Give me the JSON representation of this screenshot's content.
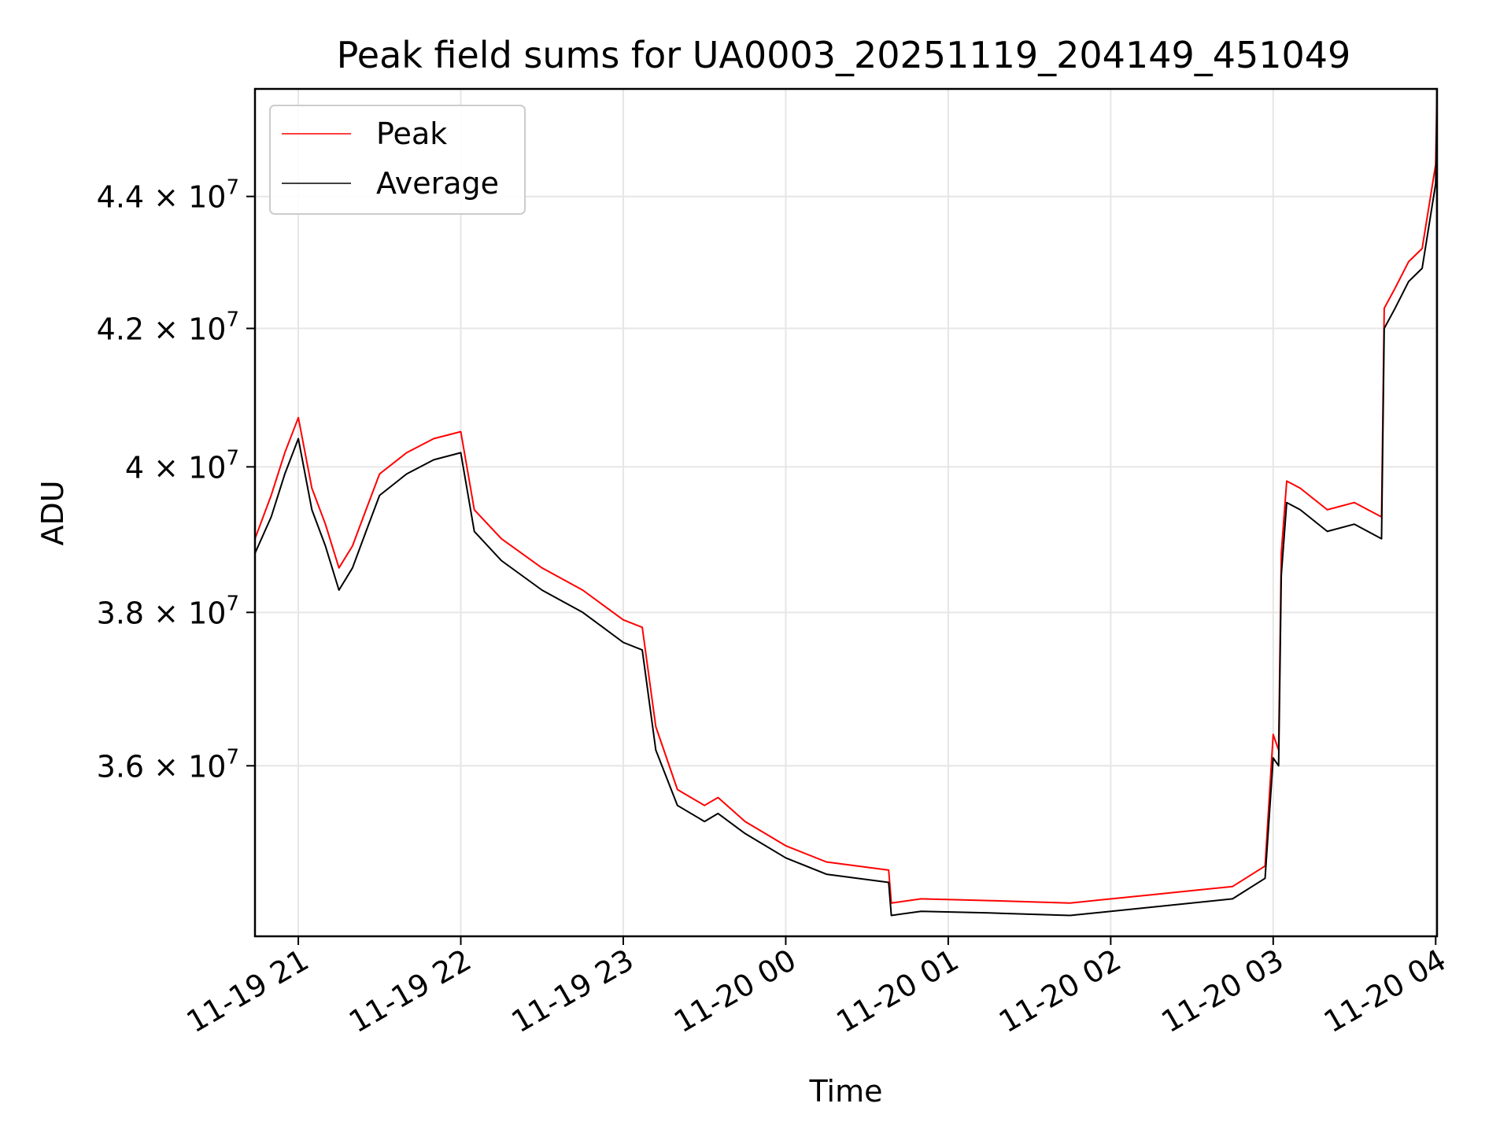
{
  "chart_data": {
    "type": "line",
    "title": "Peak field sums for UA0003_20251119_204149_451049",
    "xlabel": "Time",
    "ylabel": "ADU",
    "x_axis": {
      "type": "time",
      "range": [
        "2025-11-19T20:44:00",
        "2025-11-20T04:00:30"
      ],
      "ticks": [
        {
          "value": "2025-11-19T21:00:00",
          "label": "11-19 21"
        },
        {
          "value": "2025-11-19T22:00:00",
          "label": "11-19 22"
        },
        {
          "value": "2025-11-19T23:00:00",
          "label": "11-19 23"
        },
        {
          "value": "2025-11-20T00:00:00",
          "label": "11-20 00"
        },
        {
          "value": "2025-11-20T01:00:00",
          "label": "11-20 01"
        },
        {
          "value": "2025-11-20T02:00:00",
          "label": "11-20 02"
        },
        {
          "value": "2025-11-20T03:00:00",
          "label": "11-20 03"
        },
        {
          "value": "2025-11-20T04:00:00",
          "label": "11-20 04"
        }
      ]
    },
    "y_axis": {
      "scale": "log",
      "range": [
        33900000,
        45700000
      ],
      "ticks": [
        {
          "value": 36000000,
          "mantissa": "3.6",
          "label": "3.6 × 10^7"
        },
        {
          "value": 38000000,
          "mantissa": "3.8",
          "label": "3.8 × 10^7"
        },
        {
          "value": 40000000,
          "mantissa": "4",
          "label": "4 × 10^7"
        },
        {
          "value": 42000000,
          "mantissa": "4.2",
          "label": "4.2 × 10^7"
        },
        {
          "value": 44000000,
          "mantissa": "4.4",
          "label": "4.4 × 10^7"
        }
      ]
    },
    "grid": true,
    "legend": {
      "placement": "top-left"
    },
    "series": [
      {
        "name": "Peak",
        "color": "#ff0000",
        "x": [
          "2025-11-19T20:44:00",
          "2025-11-19T20:50:00",
          "2025-11-19T20:55:00",
          "2025-11-19T21:00:00",
          "2025-11-19T21:05:00",
          "2025-11-19T21:10:00",
          "2025-11-19T21:15:00",
          "2025-11-19T21:20:00",
          "2025-11-19T21:25:00",
          "2025-11-19T21:30:00",
          "2025-11-19T21:40:00",
          "2025-11-19T21:50:00",
          "2025-11-19T22:00:00",
          "2025-11-19T22:05:00",
          "2025-11-19T22:15:00",
          "2025-11-19T22:30:00",
          "2025-11-19T22:45:00",
          "2025-11-19T23:00:00",
          "2025-11-19T23:07:00",
          "2025-11-19T23:12:00",
          "2025-11-19T23:20:00",
          "2025-11-19T23:30:00",
          "2025-11-19T23:35:00",
          "2025-11-19T23:45:00",
          "2025-11-20T00:00:00",
          "2025-11-20T00:15:00",
          "2025-11-20T00:38:00",
          "2025-11-20T00:39:00",
          "2025-11-20T00:50:00",
          "2025-11-20T01:15:00",
          "2025-11-20T01:45:00",
          "2025-11-20T02:15:00",
          "2025-11-20T02:45:00",
          "2025-11-20T02:57:00",
          "2025-11-20T03:00:00",
          "2025-11-20T03:02:00",
          "2025-11-20T03:03:00",
          "2025-11-20T03:05:00",
          "2025-11-20T03:10:00",
          "2025-11-20T03:20:00",
          "2025-11-20T03:30:00",
          "2025-11-20T03:40:00",
          "2025-11-20T03:41:00",
          "2025-11-20T03:45:00",
          "2025-11-20T03:50:00",
          "2025-11-20T03:55:00",
          "2025-11-20T04:00:00",
          "2025-11-20T04:00:30"
        ],
        "values": [
          39000000,
          39600000,
          40200000,
          40700000,
          39700000,
          39200000,
          38600000,
          38900000,
          39400000,
          39900000,
          40200000,
          40400000,
          40500000,
          39400000,
          39000000,
          38600000,
          38300000,
          37900000,
          37800000,
          36500000,
          35700000,
          35500000,
          35600000,
          35300000,
          35000000,
          34800000,
          34700000,
          34300000,
          34350000,
          34330000,
          34300000,
          34400000,
          34500000,
          34750000,
          36400000,
          36200000,
          38800000,
          39800000,
          39700000,
          39400000,
          39500000,
          39300000,
          42300000,
          42600000,
          43000000,
          43200000,
          44500000,
          45600000
        ]
      },
      {
        "name": "Average",
        "color": "#000000",
        "x": [
          "2025-11-19T20:44:00",
          "2025-11-19T20:50:00",
          "2025-11-19T20:55:00",
          "2025-11-19T21:00:00",
          "2025-11-19T21:05:00",
          "2025-11-19T21:10:00",
          "2025-11-19T21:15:00",
          "2025-11-19T21:20:00",
          "2025-11-19T21:25:00",
          "2025-11-19T21:30:00",
          "2025-11-19T21:40:00",
          "2025-11-19T21:50:00",
          "2025-11-19T22:00:00",
          "2025-11-19T22:05:00",
          "2025-11-19T22:15:00",
          "2025-11-19T22:30:00",
          "2025-11-19T22:45:00",
          "2025-11-19T23:00:00",
          "2025-11-19T23:07:00",
          "2025-11-19T23:12:00",
          "2025-11-19T23:20:00",
          "2025-11-19T23:30:00",
          "2025-11-19T23:35:00",
          "2025-11-19T23:45:00",
          "2025-11-20T00:00:00",
          "2025-11-20T00:15:00",
          "2025-11-20T00:38:00",
          "2025-11-20T00:39:00",
          "2025-11-20T00:50:00",
          "2025-11-20T01:15:00",
          "2025-11-20T01:45:00",
          "2025-11-20T02:15:00",
          "2025-11-20T02:45:00",
          "2025-11-20T02:57:00",
          "2025-11-20T03:00:00",
          "2025-11-20T03:02:00",
          "2025-11-20T03:03:00",
          "2025-11-20T03:05:00",
          "2025-11-20T03:10:00",
          "2025-11-20T03:20:00",
          "2025-11-20T03:30:00",
          "2025-11-20T03:40:00",
          "2025-11-20T03:41:00",
          "2025-11-20T03:45:00",
          "2025-11-20T03:50:00",
          "2025-11-20T03:55:00",
          "2025-11-20T04:00:00",
          "2025-11-20T04:00:30"
        ],
        "values": [
          38800000,
          39300000,
          39900000,
          40400000,
          39400000,
          38900000,
          38300000,
          38600000,
          39100000,
          39600000,
          39900000,
          40100000,
          40200000,
          39100000,
          38700000,
          38300000,
          38000000,
          37600000,
          37500000,
          36200000,
          35500000,
          35300000,
          35400000,
          35150000,
          34850000,
          34650000,
          34550000,
          34150000,
          34200000,
          34180000,
          34150000,
          34250000,
          34350000,
          34600000,
          36100000,
          36000000,
          38500000,
          39500000,
          39400000,
          39100000,
          39200000,
          39000000,
          42000000,
          42300000,
          42700000,
          42900000,
          44200000,
          45400000
        ]
      }
    ]
  }
}
